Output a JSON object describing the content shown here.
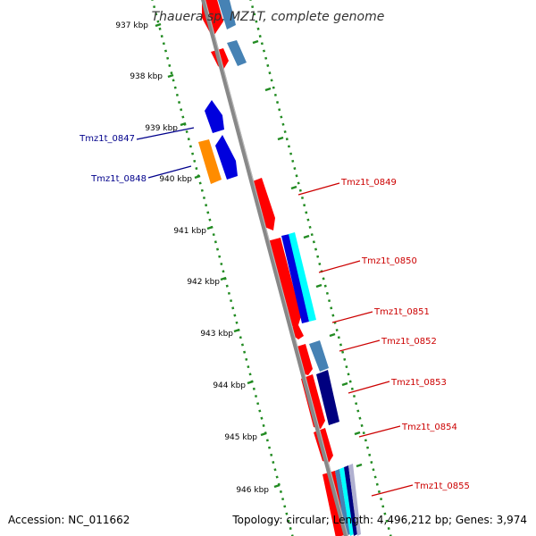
{
  "map": {
    "title": "Thauera sp. MZ1T, complete genome",
    "accession": "Accession: NC_011662",
    "summary": "Topology: circular; Length: 4,496,212 bp; Genes: 3,974"
  },
  "ruler": {
    "ticks": [
      "937 kbp",
      "938 kbp",
      "939 kbp",
      "940 kbp",
      "941 kbp",
      "942 kbp",
      "943 kbp",
      "944 kbp",
      "945 kbp",
      "946 kbp"
    ]
  },
  "genes": {
    "left": [
      {
        "label": "Tmz1t_0847",
        "color": "#00008b"
      },
      {
        "label": "Tmz1t_0848",
        "color": "#00008b"
      }
    ],
    "right": [
      {
        "label": "Tmz1t_0849",
        "color": "#cc0000"
      },
      {
        "label": "Tmz1t_0850",
        "color": "#cc0000"
      },
      {
        "label": "Tmz1t_0851",
        "color": "#cc0000"
      },
      {
        "label": "Tmz1t_0852",
        "color": "#cc0000"
      },
      {
        "label": "Tmz1t_0853",
        "color": "#cc0000"
      },
      {
        "label": "Tmz1t_0854",
        "color": "#cc0000"
      },
      {
        "label": "Tmz1t_0855",
        "color": "#cc0000"
      }
    ]
  },
  "colors": {
    "forward_gene": "#ff0000",
    "reverse_gene": "#0000dd",
    "steelblue_feature": "#4682b4",
    "cyan_feature": "#00ffff",
    "navy_feature": "#000080",
    "orange_feature": "#ff8c00",
    "backbone": "#888888",
    "tick": "#228b22"
  }
}
